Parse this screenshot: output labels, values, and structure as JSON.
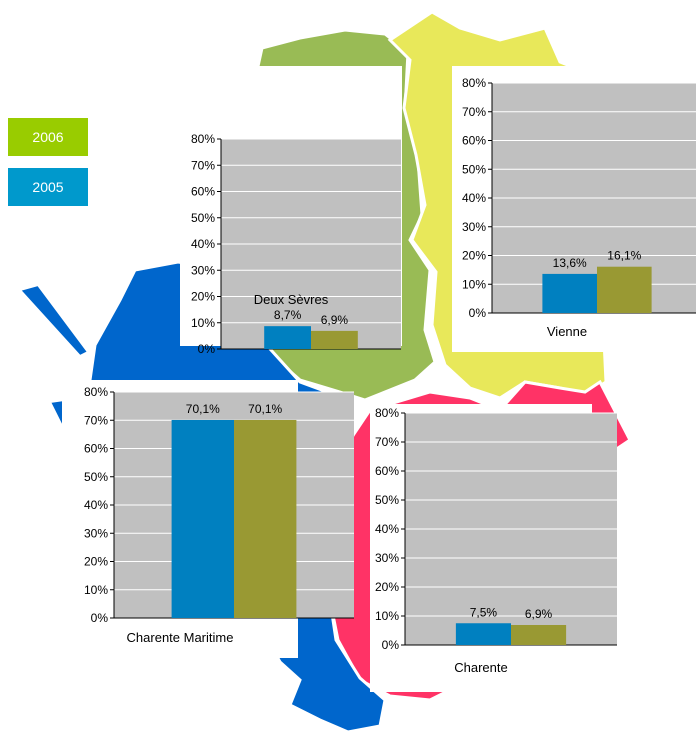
{
  "legend": [
    {
      "label": "2006",
      "color": "#99cc00"
    },
    {
      "label": "2005",
      "color": "#0099cc"
    }
  ],
  "map_colors": {
    "deux_sevres": "#99bb55",
    "vienne": "#e8e85a",
    "charente_maritime": "#0066cc",
    "charente": "#ff3366"
  },
  "chart_data": [
    {
      "type": "bar",
      "title": "Deux Sèvres",
      "categories": [
        "2005",
        "2006"
      ],
      "values": [
        8.7,
        6.9
      ],
      "labels": [
        "8,7%",
        "6,9%"
      ],
      "colors": [
        "#0080c0",
        "#999933"
      ],
      "ylim": [
        0,
        80
      ],
      "yticks": [
        "0%",
        "10%",
        "20%",
        "30%",
        "40%",
        "50%",
        "60%",
        "70%",
        "80%"
      ],
      "grid": true
    },
    {
      "type": "bar",
      "title": "Vienne",
      "categories": [
        "2005",
        "2006"
      ],
      "values": [
        13.6,
        16.1
      ],
      "labels": [
        "13,6%",
        "16,1%"
      ],
      "colors": [
        "#0080c0",
        "#999933"
      ],
      "ylim": [
        0,
        80
      ],
      "yticks": [
        "0%",
        "10%",
        "20%",
        "30%",
        "40%",
        "50%",
        "60%",
        "70%",
        "80%"
      ],
      "grid": true
    },
    {
      "type": "bar",
      "title": "Charente Maritime",
      "categories": [
        "2005",
        "2006"
      ],
      "values": [
        70.1,
        70.1
      ],
      "labels": [
        "70,1%",
        "70,1%"
      ],
      "colors": [
        "#0080c0",
        "#999933"
      ],
      "ylim": [
        0,
        80
      ],
      "yticks": [
        "0%",
        "10%",
        "20%",
        "30%",
        "40%",
        "50%",
        "60%",
        "70%",
        "80%"
      ],
      "grid": true
    },
    {
      "type": "bar",
      "title": "Charente",
      "categories": [
        "2005",
        "2006"
      ],
      "values": [
        7.5,
        6.9
      ],
      "labels": [
        "7,5%",
        "6,9%"
      ],
      "colors": [
        "#0080c0",
        "#999933"
      ],
      "ylim": [
        0,
        80
      ],
      "yticks": [
        "0%",
        "10%",
        "20%",
        "30%",
        "40%",
        "50%",
        "60%",
        "70%",
        "80%"
      ],
      "grid": true
    }
  ]
}
